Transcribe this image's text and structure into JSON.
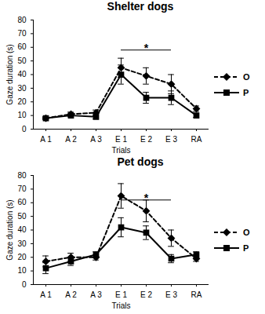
{
  "chart_data": [
    {
      "type": "line",
      "title": "Shelter dogs",
      "x_label": "Trials",
      "y_label": "Gaze duration (s)",
      "categories": [
        "A 1",
        "A 2",
        "A 3",
        "E 1",
        "E 2",
        "E 3",
        "RA"
      ],
      "series": [
        {
          "name": "O",
          "color": "#000000",
          "marker": "diamond",
          "line_style": "dashed",
          "values": [
            8,
            11,
            12,
            45,
            39,
            33,
            15
          ],
          "errors": [
            1,
            1.5,
            2,
            7,
            6,
            7,
            2
          ]
        },
        {
          "name": "P",
          "color": "#000000",
          "marker": "square",
          "line_style": "solid",
          "values": [
            8,
            10,
            9,
            40,
            23,
            23,
            10
          ],
          "errors": [
            1,
            1,
            1.5,
            7,
            4,
            5,
            1.5
          ]
        }
      ],
      "ylim": [
        0,
        80
      ],
      "yticks": [
        0,
        10,
        20,
        30,
        40,
        50,
        60,
        70,
        80
      ],
      "grid": false,
      "legend": "right",
      "annotations": [
        {
          "text": "*",
          "from": "E 1",
          "to": "E 3",
          "y": 58
        }
      ]
    },
    {
      "type": "line",
      "title": "Pet dogs",
      "x_label": "Trials",
      "y_label": "Gaze duration (s)",
      "categories": [
        "A 1",
        "A 2",
        "A 3",
        "E 1",
        "E 2",
        "E 3",
        "RA"
      ],
      "series": [
        {
          "name": "O",
          "color": "#000000",
          "marker": "diamond",
          "line_style": "dashed",
          "values": [
            17,
            20,
            20,
            65,
            54,
            34,
            19
          ],
          "errors": [
            4,
            3,
            2,
            9,
            8,
            6,
            2
          ]
        },
        {
          "name": "P",
          "color": "#000000",
          "marker": "square",
          "line_style": "solid",
          "values": [
            12,
            17,
            22,
            42,
            38,
            19,
            22
          ],
          "errors": [
            4,
            3,
            2,
            7,
            5,
            3,
            2
          ]
        }
      ],
      "ylim": [
        0,
        80
      ],
      "yticks": [
        0,
        10,
        20,
        30,
        40,
        50,
        60,
        70,
        80
      ],
      "grid": false,
      "legend": "right",
      "annotations": [
        {
          "text": "*",
          "from": "E 1",
          "to": "E 3",
          "y": 62
        }
      ]
    }
  ]
}
